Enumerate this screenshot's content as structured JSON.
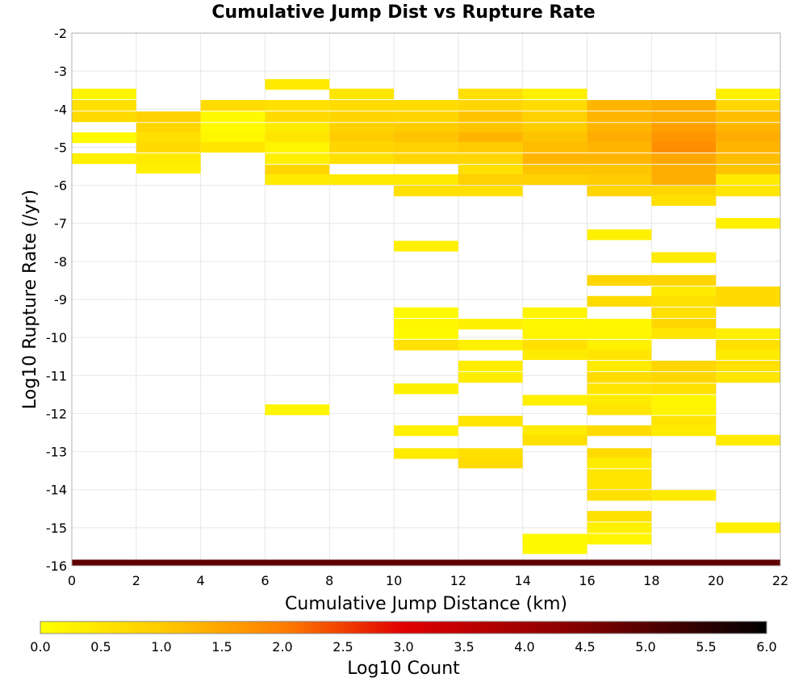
{
  "chart_data": {
    "type": "heatmap",
    "title": "Cumulative Jump Dist vs Rupture Rate",
    "xlabel": "Cumulative Jump Distance (km)",
    "ylabel": "Log10 Rupture Rate (/yr)",
    "xlim": [
      0,
      22
    ],
    "ylim": [
      -16,
      -2
    ],
    "x_ticks": [
      "0",
      "2",
      "4",
      "6",
      "8",
      "10",
      "12",
      "14",
      "16",
      "18",
      "20",
      "22"
    ],
    "y_ticks": [
      "-2",
      "-3",
      "-4",
      "-5",
      "-6",
      "-7",
      "-8",
      "-9",
      "-10",
      "-11",
      "-12",
      "-13",
      "-14",
      "-15",
      "-16"
    ],
    "grid": true,
    "x_bin_width": 2,
    "y_bin_height": 0.28,
    "cells": [
      {
        "x": 0,
        "y": -3.6,
        "v": 0.2
      },
      {
        "x": 0,
        "y": -3.9,
        "v": 0.6
      },
      {
        "x": 0,
        "y": -4.2,
        "v": 0.7
      },
      {
        "x": 0,
        "y": -4.75,
        "v": 0.1
      },
      {
        "x": 0,
        "y": -5.3,
        "v": 0.3
      },
      {
        "x": 2,
        "y": -4.2,
        "v": 0.9
      },
      {
        "x": 2,
        "y": -4.5,
        "v": 0.8
      },
      {
        "x": 2,
        "y": -4.75,
        "v": 0.6
      },
      {
        "x": 2,
        "y": -5.0,
        "v": 0.7
      },
      {
        "x": 2,
        "y": -5.3,
        "v": 0.4
      },
      {
        "x": 2,
        "y": -5.55,
        "v": 0.3
      },
      {
        "x": 4,
        "y": -3.9,
        "v": 0.7
      },
      {
        "x": 4,
        "y": -4.2,
        "v": 0.1
      },
      {
        "x": 4,
        "y": -4.5,
        "v": 0.1
      },
      {
        "x": 4,
        "y": -4.75,
        "v": 0.15
      },
      {
        "x": 4,
        "y": -5.0,
        "v": 0.5
      },
      {
        "x": 6,
        "y": -3.35,
        "v": 0.4
      },
      {
        "x": 6,
        "y": -3.9,
        "v": 0.6
      },
      {
        "x": 6,
        "y": -4.2,
        "v": 0.7
      },
      {
        "x": 6,
        "y": -4.5,
        "v": 0.4
      },
      {
        "x": 6,
        "y": -4.75,
        "v": 0.5
      },
      {
        "x": 6,
        "y": -5.0,
        "v": 0.2
      },
      {
        "x": 6,
        "y": -5.3,
        "v": 0.3
      },
      {
        "x": 6,
        "y": -5.6,
        "v": 0.8
      },
      {
        "x": 6,
        "y": -5.85,
        "v": 0.4
      },
      {
        "x": 6,
        "y": -11.9,
        "v": 0.2
      },
      {
        "x": 8,
        "y": -3.6,
        "v": 0.5
      },
      {
        "x": 8,
        "y": -3.9,
        "v": 0.7
      },
      {
        "x": 8,
        "y": -4.2,
        "v": 0.8
      },
      {
        "x": 8,
        "y": -4.5,
        "v": 0.9
      },
      {
        "x": 8,
        "y": -4.75,
        "v": 1.0
      },
      {
        "x": 8,
        "y": -5.0,
        "v": 0.8
      },
      {
        "x": 8,
        "y": -5.3,
        "v": 0.6
      },
      {
        "x": 8,
        "y": -5.85,
        "v": 0.4
      },
      {
        "x": 10,
        "y": -3.9,
        "v": 0.7
      },
      {
        "x": 10,
        "y": -4.2,
        "v": 0.8
      },
      {
        "x": 10,
        "y": -4.5,
        "v": 1.0
      },
      {
        "x": 10,
        "y": -4.75,
        "v": 1.1
      },
      {
        "x": 10,
        "y": -5.0,
        "v": 0.9
      },
      {
        "x": 10,
        "y": -5.3,
        "v": 0.8
      },
      {
        "x": 10,
        "y": -5.85,
        "v": 0.4
      },
      {
        "x": 10,
        "y": -6.15,
        "v": 0.6
      },
      {
        "x": 10,
        "y": -7.6,
        "v": 0.3
      },
      {
        "x": 10,
        "y": -9.35,
        "v": 0.1
      },
      {
        "x": 10,
        "y": -9.65,
        "v": 0.15
      },
      {
        "x": 10,
        "y": -9.9,
        "v": 0.1
      },
      {
        "x": 10,
        "y": -10.2,
        "v": 0.6
      },
      {
        "x": 10,
        "y": -11.35,
        "v": 0.3
      },
      {
        "x": 10,
        "y": -12.45,
        "v": 0.3
      },
      {
        "x": 10,
        "y": -13.05,
        "v": 0.4
      },
      {
        "x": 12,
        "y": -3.6,
        "v": 0.6
      },
      {
        "x": 12,
        "y": -3.9,
        "v": 0.8
      },
      {
        "x": 12,
        "y": -4.2,
        "v": 1.1
      },
      {
        "x": 12,
        "y": -4.5,
        "v": 1.1
      },
      {
        "x": 12,
        "y": -4.75,
        "v": 1.3
      },
      {
        "x": 12,
        "y": -5.0,
        "v": 1.0
      },
      {
        "x": 12,
        "y": -5.3,
        "v": 0.8
      },
      {
        "x": 12,
        "y": -5.6,
        "v": 0.6
      },
      {
        "x": 12,
        "y": -5.85,
        "v": 0.9
      },
      {
        "x": 12,
        "y": -6.15,
        "v": 0.6
      },
      {
        "x": 12,
        "y": -9.65,
        "v": 0.3
      },
      {
        "x": 12,
        "y": -10.2,
        "v": 0.3
      },
      {
        "x": 12,
        "y": -10.75,
        "v": 0.35
      },
      {
        "x": 12,
        "y": -11.05,
        "v": 0.35
      },
      {
        "x": 12,
        "y": -12.2,
        "v": 0.5
      },
      {
        "x": 12,
        "y": -13.05,
        "v": 0.6
      },
      {
        "x": 12,
        "y": -13.3,
        "v": 0.7
      },
      {
        "x": 14,
        "y": -3.6,
        "v": 0.3
      },
      {
        "x": 14,
        "y": -3.9,
        "v": 0.7
      },
      {
        "x": 14,
        "y": -4.2,
        "v": 0.9
      },
      {
        "x": 14,
        "y": -4.5,
        "v": 1.0
      },
      {
        "x": 14,
        "y": -4.75,
        "v": 1.1
      },
      {
        "x": 14,
        "y": -5.0,
        "v": 1.2
      },
      {
        "x": 14,
        "y": -5.3,
        "v": 1.3
      },
      {
        "x": 14,
        "y": -5.6,
        "v": 1.1
      },
      {
        "x": 14,
        "y": -5.85,
        "v": 0.9
      },
      {
        "x": 14,
        "y": -9.35,
        "v": 0.2
      },
      {
        "x": 14,
        "y": -9.65,
        "v": 0.15
      },
      {
        "x": 14,
        "y": -9.9,
        "v": 0.2
      },
      {
        "x": 14,
        "y": -10.2,
        "v": 0.6
      },
      {
        "x": 14,
        "y": -10.45,
        "v": 0.4
      },
      {
        "x": 14,
        "y": -11.65,
        "v": 0.3
      },
      {
        "x": 14,
        "y": -12.45,
        "v": 0.4
      },
      {
        "x": 14,
        "y": -12.7,
        "v": 0.6
      },
      {
        "x": 14,
        "y": -15.3,
        "v": 0.1
      },
      {
        "x": 14,
        "y": -15.55,
        "v": 0.1
      },
      {
        "x": 16,
        "y": -3.9,
        "v": 1.3
      },
      {
        "x": 16,
        "y": -4.2,
        "v": 1.3
      },
      {
        "x": 16,
        "y": -4.5,
        "v": 1.3
      },
      {
        "x": 16,
        "y": -4.75,
        "v": 1.4
      },
      {
        "x": 16,
        "y": -5.0,
        "v": 1.3
      },
      {
        "x": 16,
        "y": -5.3,
        "v": 1.3
      },
      {
        "x": 16,
        "y": -5.6,
        "v": 1.1
      },
      {
        "x": 16,
        "y": -5.85,
        "v": 1.0
      },
      {
        "x": 16,
        "y": -6.15,
        "v": 0.8
      },
      {
        "x": 16,
        "y": -7.3,
        "v": 0.3
      },
      {
        "x": 16,
        "y": -8.5,
        "v": 0.8
      },
      {
        "x": 16,
        "y": -9.05,
        "v": 0.7
      },
      {
        "x": 16,
        "y": -9.65,
        "v": 0.15
      },
      {
        "x": 16,
        "y": -9.9,
        "v": 0.2
      },
      {
        "x": 16,
        "y": -10.2,
        "v": 0.3
      },
      {
        "x": 16,
        "y": -10.45,
        "v": 0.5
      },
      {
        "x": 16,
        "y": -10.75,
        "v": 0.4
      },
      {
        "x": 16,
        "y": -11.05,
        "v": 0.7
      },
      {
        "x": 16,
        "y": -11.35,
        "v": 0.5
      },
      {
        "x": 16,
        "y": -11.65,
        "v": 0.4
      },
      {
        "x": 16,
        "y": -11.9,
        "v": 0.5
      },
      {
        "x": 16,
        "y": -12.45,
        "v": 0.7
      },
      {
        "x": 16,
        "y": -13.05,
        "v": 0.7
      },
      {
        "x": 16,
        "y": -13.3,
        "v": 0.4
      },
      {
        "x": 16,
        "y": -13.6,
        "v": 0.5
      },
      {
        "x": 16,
        "y": -13.85,
        "v": 0.5
      },
      {
        "x": 16,
        "y": -14.15,
        "v": 0.6
      },
      {
        "x": 16,
        "y": -14.7,
        "v": 0.6
      },
      {
        "x": 16,
        "y": -15.0,
        "v": 0.3
      },
      {
        "x": 16,
        "y": -15.3,
        "v": 0.2
      },
      {
        "x": 18,
        "y": -3.9,
        "v": 1.4
      },
      {
        "x": 18,
        "y": -4.2,
        "v": 1.4
      },
      {
        "x": 18,
        "y": -4.5,
        "v": 1.6
      },
      {
        "x": 18,
        "y": -4.75,
        "v": 1.7
      },
      {
        "x": 18,
        "y": -5.0,
        "v": 1.8
      },
      {
        "x": 18,
        "y": -5.3,
        "v": 1.5
      },
      {
        "x": 18,
        "y": -5.6,
        "v": 1.4
      },
      {
        "x": 18,
        "y": -5.85,
        "v": 1.4
      },
      {
        "x": 18,
        "y": -6.15,
        "v": 0.8
      },
      {
        "x": 18,
        "y": -6.4,
        "v": 0.6
      },
      {
        "x": 18,
        "y": -7.9,
        "v": 0.4
      },
      {
        "x": 18,
        "y": -8.5,
        "v": 0.8
      },
      {
        "x": 18,
        "y": -8.8,
        "v": 0.4
      },
      {
        "x": 18,
        "y": -9.05,
        "v": 0.6
      },
      {
        "x": 18,
        "y": -9.35,
        "v": 0.6
      },
      {
        "x": 18,
        "y": -9.65,
        "v": 0.8
      },
      {
        "x": 18,
        "y": -9.9,
        "v": 0.5
      },
      {
        "x": 18,
        "y": -10.75,
        "v": 0.8
      },
      {
        "x": 18,
        "y": -11.05,
        "v": 0.8
      },
      {
        "x": 18,
        "y": -11.35,
        "v": 0.6
      },
      {
        "x": 18,
        "y": -11.65,
        "v": 0.2
      },
      {
        "x": 18,
        "y": -11.9,
        "v": 0.2
      },
      {
        "x": 18,
        "y": -12.2,
        "v": 0.5
      },
      {
        "x": 18,
        "y": -12.45,
        "v": 0.4
      },
      {
        "x": 18,
        "y": -14.15,
        "v": 0.4
      },
      {
        "x": 20,
        "y": -3.6,
        "v": 0.3
      },
      {
        "x": 20,
        "y": -3.9,
        "v": 0.8
      },
      {
        "x": 20,
        "y": -4.2,
        "v": 1.2
      },
      {
        "x": 20,
        "y": -4.5,
        "v": 1.3
      },
      {
        "x": 20,
        "y": -4.75,
        "v": 1.4
      },
      {
        "x": 20,
        "y": -5.0,
        "v": 1.3
      },
      {
        "x": 20,
        "y": -5.3,
        "v": 1.2
      },
      {
        "x": 20,
        "y": -5.6,
        "v": 1.1
      },
      {
        "x": 20,
        "y": -5.85,
        "v": 0.4
      },
      {
        "x": 20,
        "y": -6.15,
        "v": 0.5
      },
      {
        "x": 20,
        "y": -7.0,
        "v": 0.3
      },
      {
        "x": 20,
        "y": -8.8,
        "v": 0.7
      },
      {
        "x": 20,
        "y": -9.05,
        "v": 0.7
      },
      {
        "x": 20,
        "y": -9.9,
        "v": 0.3
      },
      {
        "x": 20,
        "y": -10.2,
        "v": 0.6
      },
      {
        "x": 20,
        "y": -10.45,
        "v": 0.4
      },
      {
        "x": 20,
        "y": -10.75,
        "v": 0.6
      },
      {
        "x": 20,
        "y": -11.05,
        "v": 0.5
      },
      {
        "x": 20,
        "y": -12.7,
        "v": 0.4
      },
      {
        "x": 20,
        "y": -15.0,
        "v": 0.3
      }
    ],
    "baseline_band": {
      "y": -15.92,
      "height": 0.16,
      "color": "#5e0000"
    },
    "colorbar": {
      "label": "Log10 Count",
      "range": [
        0.0,
        6.0
      ],
      "ticks": [
        "0.0",
        "0.5",
        "1.0",
        "1.5",
        "2.0",
        "2.5",
        "3.0",
        "3.5",
        "4.0",
        "4.5",
        "5.0",
        "5.5",
        "6.0"
      ],
      "stops": [
        {
          "v": 0.0,
          "color": "#ffff00"
        },
        {
          "v": 1.0,
          "color": "#ffcc00"
        },
        {
          "v": 2.0,
          "color": "#ff7f00"
        },
        {
          "v": 3.0,
          "color": "#e00000"
        },
        {
          "v": 4.5,
          "color": "#800000"
        },
        {
          "v": 6.0,
          "color": "#000000"
        }
      ]
    }
  }
}
